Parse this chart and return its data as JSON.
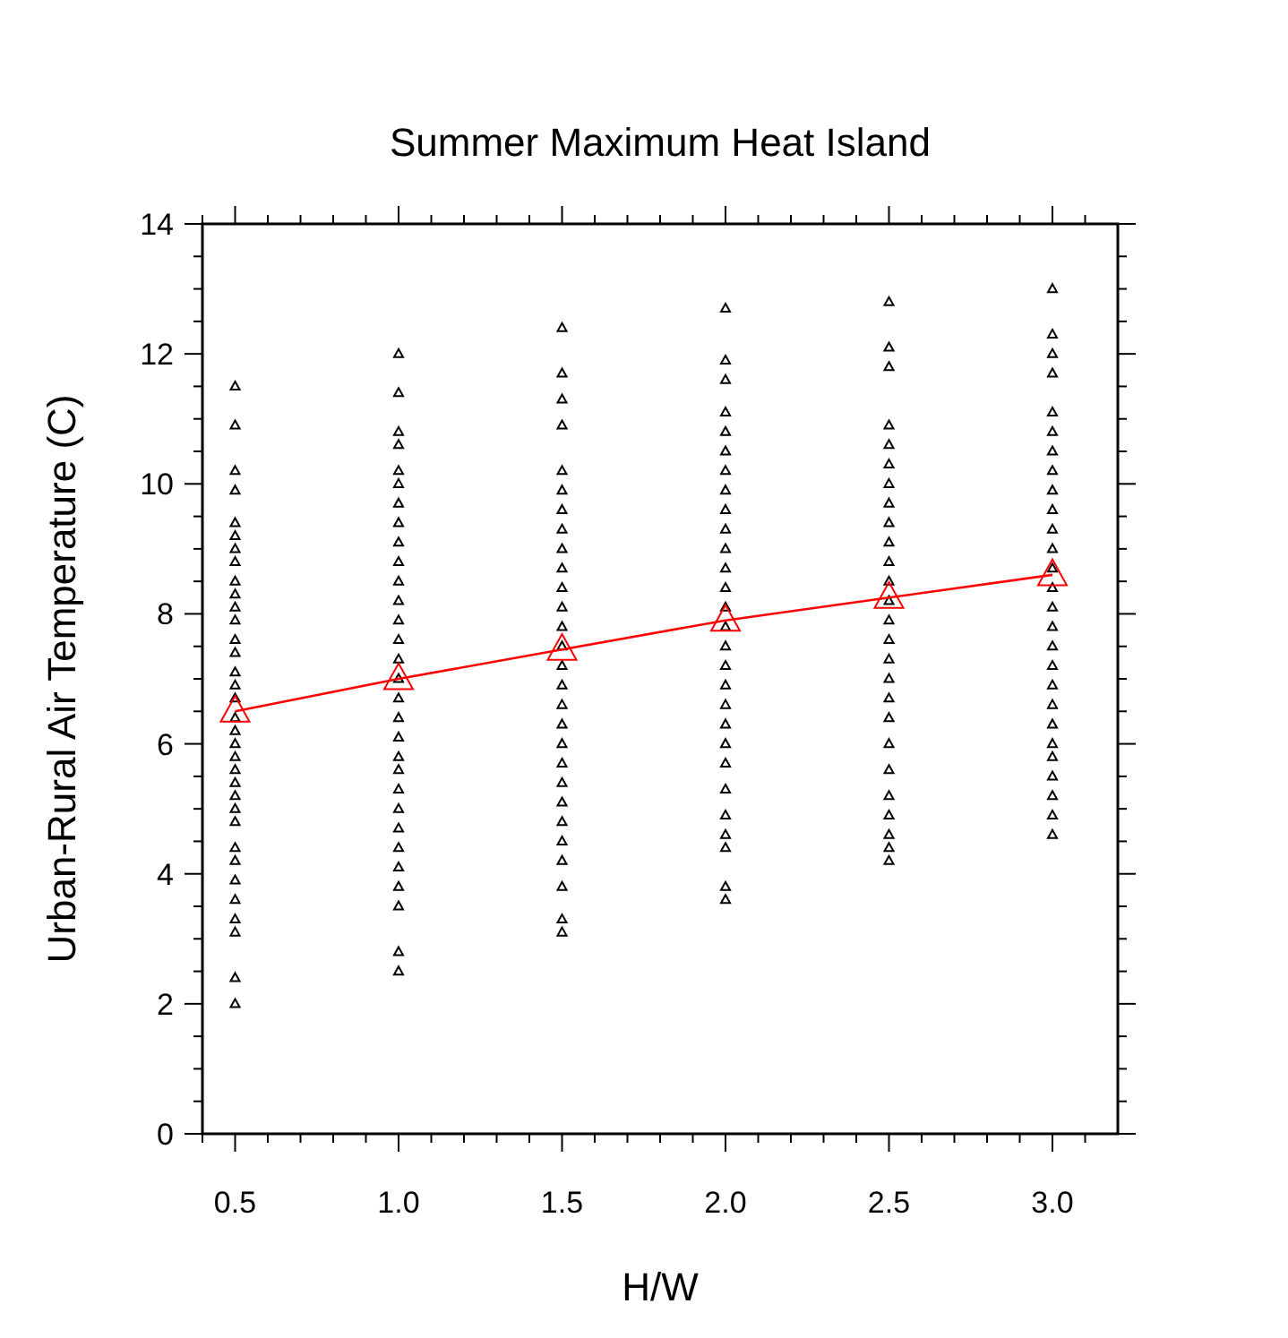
{
  "chart_data": {
    "type": "scatter",
    "title": "Summer Maximum Heat Island",
    "xlabel": "H/W",
    "ylabel": "Urban-Rural Air Temperature (C)",
    "xlim": [
      0.4,
      3.2
    ],
    "xticks": [
      {
        "value": 0.4,
        "label": null
      },
      {
        "value": 0.5,
        "label": "0.5"
      },
      {
        "value": 0.6,
        "label": null
      },
      {
        "value": 0.7,
        "label": null
      },
      {
        "value": 0.8,
        "label": null
      },
      {
        "value": 0.9,
        "label": null
      },
      {
        "value": 1.0,
        "label": "1.0"
      },
      {
        "value": 1.1,
        "label": null
      },
      {
        "value": 1.2,
        "label": null
      },
      {
        "value": 1.3,
        "label": null
      },
      {
        "value": 1.4,
        "label": null
      },
      {
        "value": 1.5,
        "label": "1.5"
      },
      {
        "value": 1.6,
        "label": null
      },
      {
        "value": 1.7,
        "label": null
      },
      {
        "value": 1.8,
        "label": null
      },
      {
        "value": 1.9,
        "label": null
      },
      {
        "value": 2.0,
        "label": "2.0"
      },
      {
        "value": 2.1,
        "label": null
      },
      {
        "value": 2.2,
        "label": null
      },
      {
        "value": 2.3,
        "label": null
      },
      {
        "value": 2.4,
        "label": null
      },
      {
        "value": 2.5,
        "label": "2.5"
      },
      {
        "value": 2.6,
        "label": null
      },
      {
        "value": 2.7,
        "label": null
      },
      {
        "value": 2.8,
        "label": null
      },
      {
        "value": 2.9,
        "label": null
      },
      {
        "value": 3.0,
        "label": "3.0"
      },
      {
        "value": 3.1,
        "label": null
      }
    ],
    "ylim": [
      0,
      14
    ],
    "yticks": [
      0,
      {
        "value": 0.5,
        "label": null
      },
      {
        "value": 1,
        "label": null
      },
      {
        "value": 1.5,
        "label": null
      },
      2,
      {
        "value": 2.5,
        "label": null
      },
      {
        "value": 3,
        "label": null
      },
      {
        "value": 3.5,
        "label": null
      },
      4,
      {
        "value": 4.5,
        "label": null
      },
      {
        "value": 5,
        "label": null
      },
      {
        "value": 5.5,
        "label": null
      },
      6,
      {
        "value": 6.5,
        "label": null
      },
      {
        "value": 7,
        "label": null
      },
      {
        "value": 7.5,
        "label": null
      },
      8,
      {
        "value": 8.5,
        "label": null
      },
      {
        "value": 9,
        "label": null
      },
      {
        "value": 9.5,
        "label": null
      },
      10,
      {
        "value": 10.5,
        "label": null
      },
      {
        "value": 11,
        "label": null
      },
      {
        "value": 11.5,
        "label": null
      },
      12,
      {
        "value": 12.5,
        "label": null
      },
      {
        "value": 13,
        "label": null
      },
      {
        "value": 13.5,
        "label": null
      },
      14
    ],
    "grid": false,
    "series": [
      {
        "type": "scatter",
        "marker": "triangle",
        "color": "#000000",
        "x": [
          0.5,
          0.5,
          0.5,
          0.5,
          0.5,
          0.5,
          0.5,
          0.5,
          0.5,
          0.5,
          0.5,
          0.5,
          0.5,
          0.5,
          0.5,
          0.5,
          0.5,
          0.5,
          0.5,
          0.5,
          0.5,
          0.5,
          0.5,
          0.5,
          0.5,
          0.5,
          0.5,
          0.5,
          0.5,
          0.5,
          0.5,
          0.5,
          0.5,
          0.5
        ],
        "values": [
          11.5,
          10.9,
          10.2,
          9.9,
          9.4,
          9.2,
          9.0,
          8.8,
          8.5,
          8.3,
          8.1,
          7.9,
          7.6,
          7.4,
          7.1,
          6.9,
          6.7,
          6.4,
          6.2,
          6.0,
          5.8,
          5.6,
          5.4,
          5.2,
          5.0,
          4.8,
          4.4,
          4.2,
          3.9,
          3.6,
          3.3,
          3.1,
          2.4,
          2.0
        ]
      },
      {
        "type": "scatter",
        "marker": "triangle",
        "color": "#000000",
        "x": [
          1,
          1,
          1,
          1,
          1,
          1,
          1,
          1,
          1,
          1,
          1,
          1,
          1,
          1,
          1,
          1,
          1,
          1,
          1,
          1,
          1,
          1,
          1,
          1,
          1,
          1,
          1,
          1,
          1,
          1
        ],
        "values": [
          12.0,
          11.4,
          10.8,
          10.6,
          10.2,
          10.0,
          9.7,
          9.4,
          9.1,
          8.8,
          8.5,
          8.2,
          7.9,
          7.6,
          7.3,
          7.0,
          6.7,
          6.4,
          6.1,
          5.8,
          5.6,
          5.3,
          5.0,
          4.7,
          4.4,
          4.1,
          3.8,
          3.5,
          2.8,
          2.5
        ]
      },
      {
        "type": "scatter",
        "marker": "triangle",
        "color": "#000000",
        "x": [
          1.5,
          1.5,
          1.5,
          1.5,
          1.5,
          1.5,
          1.5,
          1.5,
          1.5,
          1.5,
          1.5,
          1.5,
          1.5,
          1.5,
          1.5,
          1.5,
          1.5,
          1.5,
          1.5,
          1.5,
          1.5,
          1.5,
          1.5,
          1.5,
          1.5,
          1.5,
          1.5,
          1.5
        ],
        "values": [
          12.4,
          11.7,
          11.3,
          10.9,
          10.2,
          9.9,
          9.6,
          9.3,
          9.0,
          8.7,
          8.4,
          8.1,
          7.8,
          7.5,
          7.2,
          6.9,
          6.6,
          6.3,
          6.0,
          5.7,
          5.4,
          5.1,
          4.8,
          4.5,
          4.2,
          3.8,
          3.3,
          3.1
        ]
      },
      {
        "type": "scatter",
        "marker": "triangle",
        "color": "#000000",
        "x": [
          2,
          2,
          2,
          2,
          2,
          2,
          2,
          2,
          2,
          2,
          2,
          2,
          2,
          2,
          2,
          2,
          2,
          2,
          2,
          2,
          2,
          2,
          2,
          2,
          2,
          2,
          2,
          2
        ],
        "values": [
          12.7,
          11.9,
          11.6,
          11.1,
          10.8,
          10.5,
          10.2,
          9.9,
          9.6,
          9.3,
          9.0,
          8.7,
          8.4,
          8.1,
          7.8,
          7.5,
          7.2,
          6.9,
          6.6,
          6.3,
          6.0,
          5.7,
          5.3,
          4.9,
          4.6,
          4.4,
          3.8,
          3.6
        ]
      },
      {
        "type": "scatter",
        "marker": "triangle",
        "color": "#000000",
        "x": [
          2.5,
          2.5,
          2.5,
          2.5,
          2.5,
          2.5,
          2.5,
          2.5,
          2.5,
          2.5,
          2.5,
          2.5,
          2.5,
          2.5,
          2.5,
          2.5,
          2.5,
          2.5,
          2.5,
          2.5,
          2.5,
          2.5,
          2.5,
          2.5,
          2.5,
          2.5
        ],
        "values": [
          12.8,
          12.1,
          11.8,
          10.9,
          10.6,
          10.3,
          10.0,
          9.7,
          9.4,
          9.1,
          8.8,
          8.5,
          8.2,
          7.9,
          7.6,
          7.3,
          7.0,
          6.7,
          6.4,
          6.0,
          5.6,
          5.2,
          4.9,
          4.6,
          4.4,
          4.2
        ]
      },
      {
        "type": "scatter",
        "marker": "triangle",
        "color": "#000000",
        "x": [
          3,
          3,
          3,
          3,
          3,
          3,
          3,
          3,
          3,
          3,
          3,
          3,
          3,
          3,
          3,
          3,
          3,
          3,
          3,
          3,
          3,
          3,
          3,
          3,
          3,
          3,
          3
        ],
        "values": [
          13.0,
          12.3,
          12.0,
          11.7,
          11.1,
          10.8,
          10.5,
          10.2,
          9.9,
          9.6,
          9.3,
          9.0,
          8.7,
          8.4,
          8.1,
          7.8,
          7.5,
          7.2,
          6.9,
          6.6,
          6.3,
          6.0,
          5.8,
          5.5,
          5.2,
          4.9,
          4.6
        ]
      },
      {
        "type": "line",
        "marker": "triangle",
        "line_style": "solid",
        "color": "#ff0000",
        "x": [
          0.5,
          1.0,
          1.5,
          2.0,
          2.5,
          3.0
        ],
        "values": [
          6.5,
          7.0,
          7.45,
          7.9,
          8.25,
          8.6
        ]
      }
    ]
  }
}
